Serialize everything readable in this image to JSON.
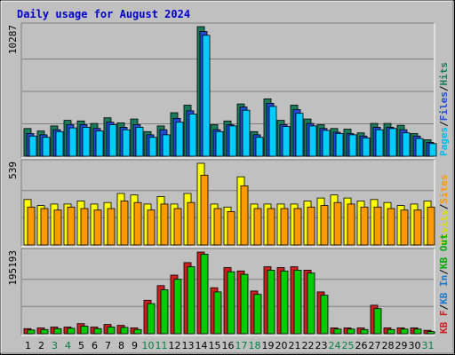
{
  "chart_data": {
    "type": "bar",
    "title": "Daily usage for August 2024",
    "categories": [
      "1",
      "2",
      "3",
      "4",
      "5",
      "6",
      "7",
      "8",
      "9",
      "10",
      "11",
      "12",
      "13",
      "14",
      "15",
      "16",
      "17",
      "18",
      "19",
      "20",
      "21",
      "22",
      "23",
      "24",
      "25",
      "26",
      "27",
      "28",
      "29",
      "30",
      "31"
    ],
    "weekend_days": [
      "3",
      "4",
      "10",
      "11",
      "17",
      "18",
      "24",
      "25",
      "31"
    ],
    "panels": [
      {
        "id": "hits",
        "ymax_label": "10287",
        "ylim": [
          0,
          10287
        ],
        "legend": [
          "Pages",
          "Files",
          "Hits"
        ],
        "series": [
          {
            "name": "Hits",
            "color": "#1a7a5a",
            "values": [
              2200,
              2000,
              2400,
              2850,
              2800,
              2600,
              3050,
              2650,
              2950,
              1950,
              2400,
              3450,
              4050,
              10287,
              2500,
              2800,
              4150,
              1950,
              4550,
              2850,
              4050,
              2950,
              2500,
              2200,
              2150,
              1850,
              2600,
              2600,
              2450,
              1800,
              1300
            ]
          },
          {
            "name": "Files",
            "color": "#1f4bd8",
            "values": [
              1800,
              1700,
              2100,
              2500,
              2500,
              2200,
              2700,
              2300,
              2500,
              1700,
              2100,
              3000,
              3600,
              9900,
              2100,
              2500,
              3900,
              1700,
              4200,
              2500,
              3700,
              2600,
              2200,
              1900,
              1800,
              1600,
              2300,
              2300,
              2100,
              1600,
              1100
            ]
          },
          {
            "name": "Pages",
            "color": "#00ccff",
            "values": [
              1600,
              1500,
              1950,
              2250,
              2300,
              2000,
              2500,
              2100,
              2300,
              1500,
              1700,
              2700,
              3350,
              9600,
              1950,
              2400,
              3650,
              1500,
              3950,
              2350,
              3400,
              2400,
              2050,
              1800,
              1700,
              1450,
              2100,
              2200,
              1850,
              1400,
              1000
            ]
          }
        ]
      },
      {
        "id": "visits",
        "ymax_label": "539",
        "ylim": [
          0,
          539
        ],
        "legend": [
          "Visits",
          "Sites"
        ],
        "series": [
          {
            "name": "Visits",
            "color": "#ffff00",
            "values": [
              300,
              260,
              270,
              270,
              290,
              270,
              280,
              340,
              330,
              270,
              320,
              270,
              340,
              539,
              270,
              250,
              450,
              270,
              270,
              270,
              270,
              290,
              310,
              330,
              310,
              290,
              300,
              280,
              260,
              270,
              290
            ]
          },
          {
            "name": "Sites",
            "color": "#ff9900",
            "values": [
              250,
              240,
              230,
              250,
              240,
              230,
              240,
              290,
              280,
              230,
              270,
              240,
              280,
              460,
              240,
              220,
              390,
              240,
              240,
              240,
              240,
              250,
              260,
              280,
              270,
              250,
              250,
              240,
              230,
              230,
              250
            ]
          }
        ]
      },
      {
        "id": "kbytes",
        "ymax_label": "195193",
        "ylim": [
          0,
          195193
        ],
        "legend": [
          "KB F",
          "KB In",
          "KB Out"
        ],
        "series": [
          {
            "name": "KB F",
            "color": "#cc1f1f",
            "values": [
              12000,
              14000,
              16000,
              16000,
              24000,
              16000,
              22000,
              20000,
              14000,
              80000,
              115000,
              140000,
              170000,
              195193,
              110000,
              158000,
              150000,
              102000,
              160000,
              158000,
              160000,
              152000,
              100000,
              14000,
              14000,
              14000,
              68000,
              14000,
              14000,
              14000,
              8000
            ]
          },
          {
            "name": "KB In",
            "color": "#00cc00",
            "values": [
              9000,
              10000,
              12000,
              13000,
              18000,
              12000,
              16000,
              15000,
              10000,
              72000,
              105000,
              130000,
              160000,
              190000,
              100000,
              148000,
              142000,
              94000,
              152000,
              150000,
              152000,
              145000,
              92000,
              11000,
              11000,
              10000,
              60000,
              10000,
              11000,
              11000,
              5000
            ]
          }
        ]
      }
    ]
  }
}
